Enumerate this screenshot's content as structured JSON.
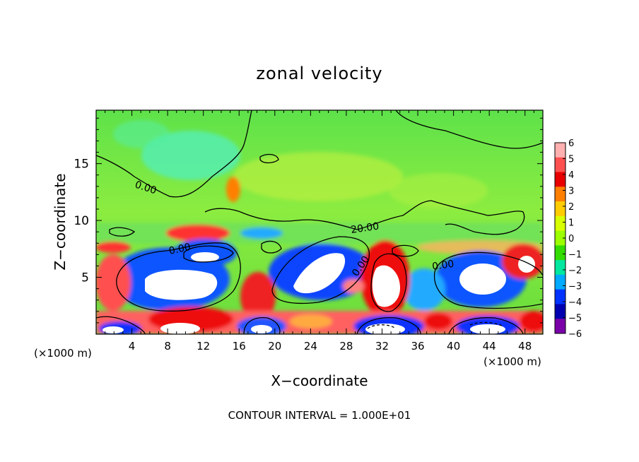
{
  "chart_data": {
    "type": "heatmap",
    "subtype": "filled-contour",
    "title": "zonal velocity",
    "xlabel": "X−coordinate",
    "ylabel": "Z−coordinate",
    "x_unit_left": "(×1000 m)",
    "x_unit_right": "(×1000 m)",
    "footer": "CONTOUR INTERVAL = 1.000E+01",
    "xlim": [
      0,
      50
    ],
    "ylim": [
      0,
      19.7
    ],
    "x_ticks": [
      4,
      8,
      12,
      16,
      20,
      24,
      28,
      32,
      36,
      40,
      44,
      48
    ],
    "x_tick_labels": [
      "4",
      "8",
      "12",
      "16",
      "20",
      "24",
      "28",
      "32",
      "36",
      "40",
      "44",
      "48"
    ],
    "y_ticks": [
      5,
      10,
      15
    ],
    "y_tick_labels": [
      "5",
      "10",
      "15"
    ],
    "colorbar": {
      "values": [
        6,
        5,
        4,
        3,
        2,
        1,
        0,
        -1,
        -2,
        -3,
        -4,
        -5,
        -6
      ],
      "labels": [
        "6",
        "5",
        "4",
        "3",
        "2",
        "1",
        "0",
        "−1",
        "−2",
        "−3",
        "−4",
        "−5",
        "−6"
      ],
      "colors": [
        "#ffb0b0",
        "#ff5050",
        "#e80000",
        "#ff7f00",
        "#ffcc00",
        "#d8ff00",
        "#9cff00",
        "#33dd00",
        "#00e8a0",
        "#00aaff",
        "#0033ff",
        "#0000b0",
        "#7a00a8"
      ]
    },
    "contour_labels": [
      "0.00",
      "0.00",
      "20.00",
      "0.00",
      "0.00"
    ],
    "colors": {
      "background_field": "#66e044",
      "upper_field": "#8aee44",
      "cyan_patch": "#55f0b0",
      "positive_strong": "#e80000",
      "positive_weak": "#ff6060",
      "negative_strong": "#0000ff",
      "negative_weak": "#00aaff",
      "saturated": "#ffffff",
      "contour_line": "#000000"
    }
  }
}
